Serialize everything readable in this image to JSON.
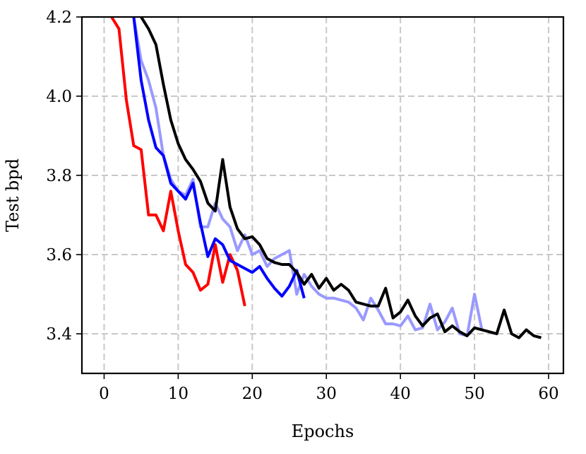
{
  "chart_data": {
    "type": "line",
    "title": "",
    "xlabel": "Epochs",
    "ylabel": "Test bpd",
    "xlim": [
      -3,
      62
    ],
    "ylim": [
      3.3,
      4.2
    ],
    "xticks": [
      0,
      10,
      20,
      30,
      40,
      50,
      60
    ],
    "xtick_labels": [
      "0",
      "10",
      "20",
      "30",
      "40",
      "50",
      "60"
    ],
    "yticks": [
      3.4,
      3.6,
      3.8,
      4.0,
      4.2
    ],
    "ytick_labels": [
      "3.4",
      "3.6",
      "3.8",
      "4.0",
      "4.2"
    ],
    "grid": true,
    "grid_style": "dashed",
    "legend": "none",
    "series": [
      {
        "color": "#9999ff",
        "x": [
          4,
          5,
          6,
          7,
          8,
          9,
          10,
          11,
          12,
          13,
          14,
          15,
          16,
          17,
          18,
          19,
          20,
          21,
          22,
          23,
          24,
          25,
          26,
          27,
          28,
          29,
          30,
          31,
          32,
          33,
          34,
          35,
          36,
          37,
          38,
          39,
          40,
          41,
          42,
          43,
          44,
          45,
          46,
          47,
          48,
          49,
          50,
          51
        ],
        "values": [
          4.2,
          4.09,
          4.04,
          3.97,
          3.85,
          3.79,
          3.76,
          3.75,
          3.79,
          3.67,
          3.67,
          3.73,
          3.69,
          3.67,
          3.61,
          3.65,
          3.6,
          3.61,
          3.57,
          3.59,
          3.6,
          3.61,
          3.5,
          3.55,
          3.52,
          3.5,
          3.49,
          3.49,
          3.485,
          3.48,
          3.465,
          3.435,
          3.49,
          3.46,
          3.425,
          3.425,
          3.42,
          3.445,
          3.41,
          3.415,
          3.475,
          3.41,
          3.43,
          3.465,
          3.4,
          3.395,
          3.5,
          3.41
        ]
      },
      {
        "color": "#ff0000",
        "x": [
          1,
          2,
          3,
          4,
          5,
          6,
          7,
          8,
          9,
          10,
          11,
          12,
          13,
          14,
          15,
          16,
          17,
          18,
          19
        ],
        "values": [
          4.2,
          4.17,
          3.99,
          3.875,
          3.865,
          3.7,
          3.7,
          3.66,
          3.76,
          3.66,
          3.575,
          3.555,
          3.51,
          3.525,
          3.625,
          3.53,
          3.6,
          3.56,
          3.47
        ]
      },
      {
        "color": "#0000ff",
        "x": [
          4,
          5,
          6,
          7,
          8,
          9,
          10,
          11,
          12,
          13,
          14,
          15,
          16,
          17,
          18,
          19,
          20,
          21,
          22,
          23,
          24,
          25,
          26,
          27
        ],
        "values": [
          4.2,
          4.04,
          3.94,
          3.87,
          3.85,
          3.78,
          3.76,
          3.74,
          3.78,
          3.68,
          3.595,
          3.64,
          3.625,
          3.585,
          3.575,
          3.565,
          3.555,
          3.57,
          3.54,
          3.515,
          3.495,
          3.52,
          3.56,
          3.49
        ]
      },
      {
        "color": "#000000",
        "x": [
          5,
          6,
          7,
          8,
          9,
          10,
          11,
          12,
          13,
          14,
          15,
          16,
          17,
          18,
          19,
          20,
          21,
          22,
          23,
          24,
          25,
          26,
          27,
          28,
          29,
          30,
          31,
          32,
          33,
          34,
          35,
          36,
          37,
          38,
          39,
          40,
          41,
          42,
          43,
          44,
          45,
          46,
          47,
          48,
          49,
          50,
          51,
          52,
          53,
          54,
          55,
          56,
          57,
          58,
          59
        ],
        "values": [
          4.2,
          4.17,
          4.13,
          4.03,
          3.94,
          3.88,
          3.84,
          3.815,
          3.785,
          3.73,
          3.71,
          3.84,
          3.72,
          3.665,
          3.64,
          3.645,
          3.625,
          3.59,
          3.58,
          3.575,
          3.575,
          3.555,
          3.525,
          3.55,
          3.515,
          3.54,
          3.51,
          3.525,
          3.51,
          3.48,
          3.475,
          3.47,
          3.47,
          3.515,
          3.44,
          3.455,
          3.485,
          3.445,
          3.42,
          3.44,
          3.45,
          3.405,
          3.42,
          3.405,
          3.395,
          3.415,
          3.41,
          3.405,
          3.4,
          3.46,
          3.4,
          3.39,
          3.41,
          3.395,
          3.39
        ]
      }
    ]
  }
}
